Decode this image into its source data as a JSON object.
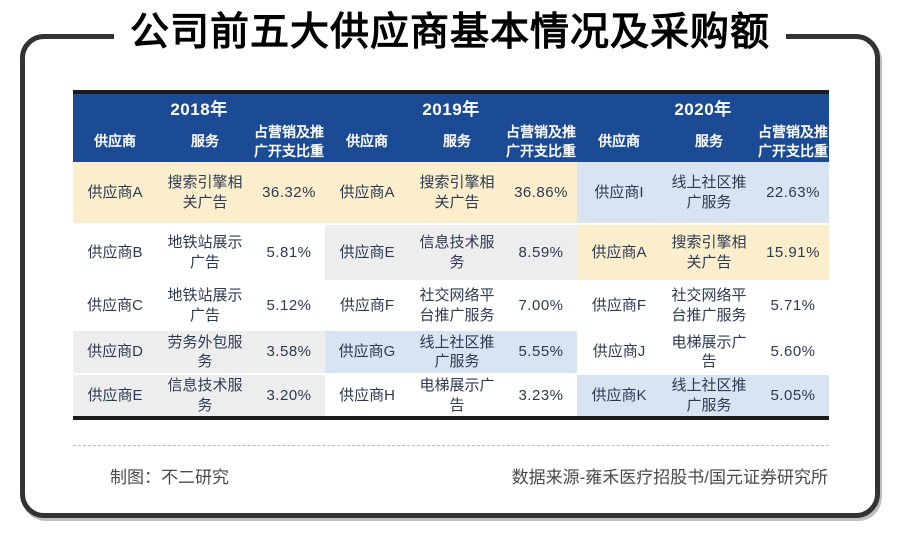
{
  "title": "公司前五大供应商基本情况及采购额",
  "colors": {
    "header_bg": "#1C4B96",
    "header_text": "#FFFFFF",
    "body_text": "#2C3A52",
    "frame_border": "#333333",
    "highlight_cream": "#FBEECD",
    "highlight_gray": "#EDEDED",
    "highlight_blue": "#D8E4F2"
  },
  "chart_data": {
    "type": "table",
    "title": "公司前五大供应商基本情况及采购额",
    "column_headers": {
      "supplier": "供应商",
      "service": "服务",
      "share": "占营销及推广开支比重"
    },
    "sections": [
      {
        "year": "2018年",
        "rows": [
          {
            "supplier": "供应商A",
            "service": "搜索引擎相关广告",
            "share": "36.32%",
            "bg": "#FBEECD"
          },
          {
            "supplier": "供应商B",
            "service": "地铁站展示广告",
            "share": "5.81%",
            "bg": "#FFFFFF"
          },
          {
            "supplier": "供应商C",
            "service": "地铁站展示广告",
            "share": "5.12%",
            "bg": "#FFFFFF"
          },
          {
            "supplier": "供应商D",
            "service": "劳务外包服务",
            "share": "3.58%",
            "bg": "#EDEDED"
          },
          {
            "supplier": "供应商E",
            "service": "信息技术服务",
            "share": "3.20%",
            "bg": "#EDEDED"
          }
        ]
      },
      {
        "year": "2019年",
        "rows": [
          {
            "supplier": "供应商A",
            "service": "搜索引擎相关广告",
            "share": "36.86%",
            "bg": "#FBEECD"
          },
          {
            "supplier": "供应商E",
            "service": "信息技术服务",
            "share": "8.59%",
            "bg": "#EDEDED"
          },
          {
            "supplier": "供应商F",
            "service": "社交网络平台推广服务",
            "share": "7.00%",
            "bg": "#FFFFFF"
          },
          {
            "supplier": "供应商G",
            "service": "线上社区推广服务",
            "share": "5.55%",
            "bg": "#D8E4F2"
          },
          {
            "supplier": "供应商H",
            "service": "电梯展示广告",
            "share": "3.23%",
            "bg": "#FFFFFF"
          }
        ]
      },
      {
        "year": "2020年",
        "rows": [
          {
            "supplier": "供应商I",
            "service": "线上社区推广服务",
            "share": "22.63%",
            "bg": "#D8E4F2"
          },
          {
            "supplier": "供应商A",
            "service": "搜索引擎相关广告",
            "share": "15.91%",
            "bg": "#FBEECD"
          },
          {
            "supplier": "供应商F",
            "service": "社交网络平台推广服务",
            "share": "5.71%",
            "bg": "#FFFFFF"
          },
          {
            "supplier": "供应商J",
            "service": "电梯展示广告",
            "share": "5.60%",
            "bg": "#FFFFFF"
          },
          {
            "supplier": "供应商K",
            "service": "线上社区推广服务",
            "share": "5.05%",
            "bg": "#D8E4F2"
          }
        ]
      }
    ]
  },
  "footer": {
    "credit": "制图：不二研究",
    "source": "数据来源-雍禾医疗招股书/国元证券研究所"
  }
}
